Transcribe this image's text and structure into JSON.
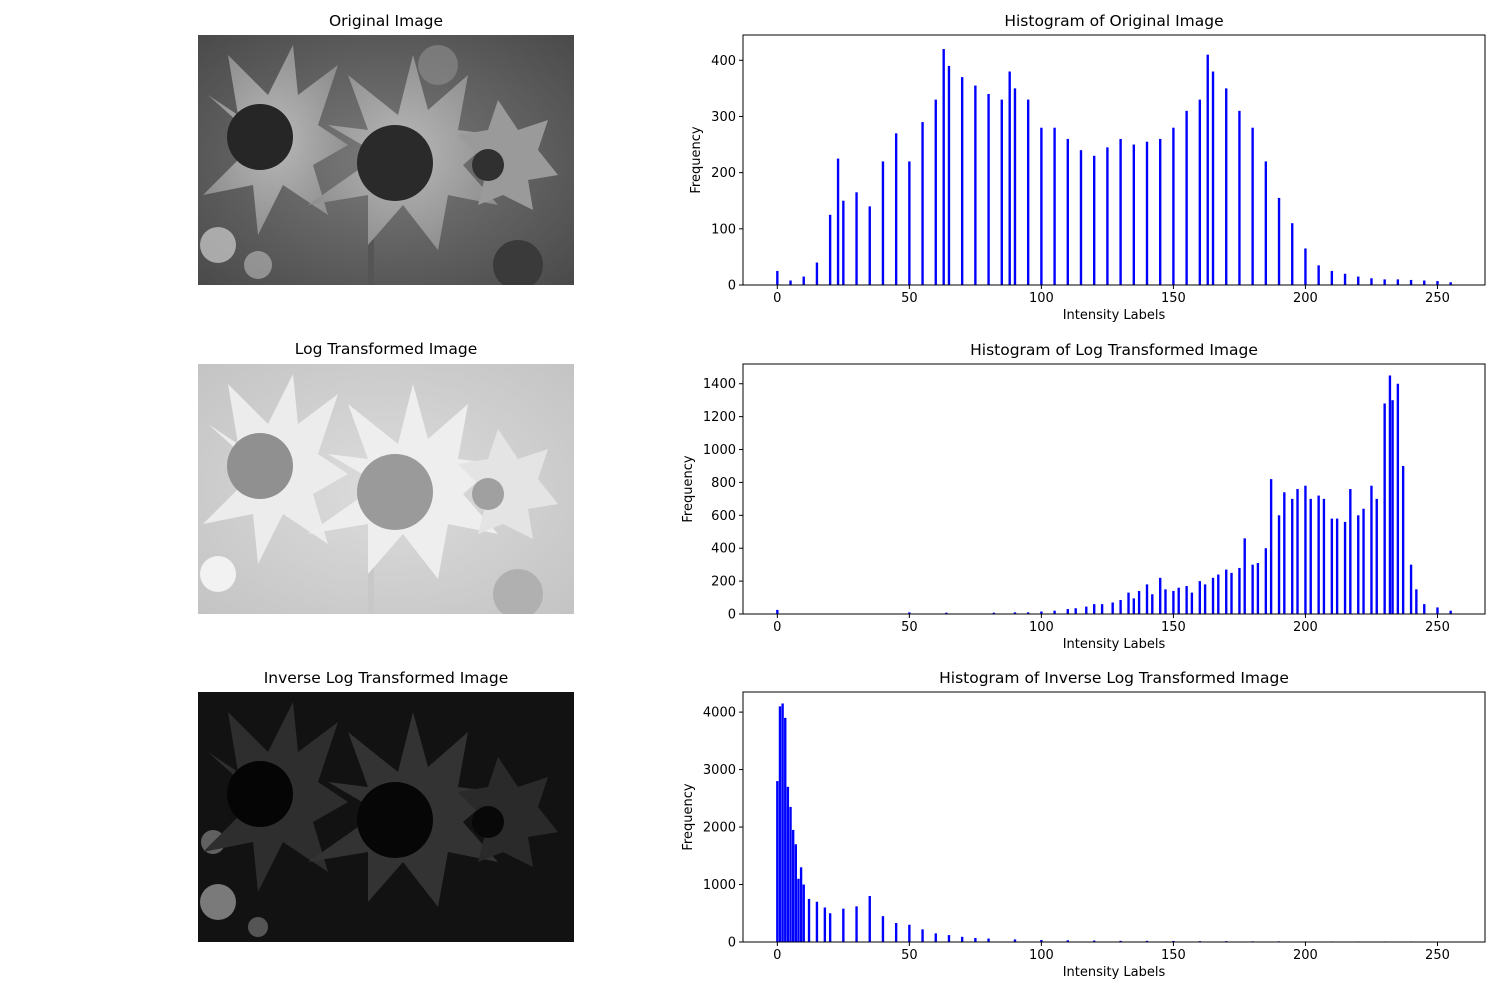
{
  "panels": [
    {
      "image_title": "Original Image",
      "histogram_title": "Histogram of Original Image",
      "tone": "normal"
    },
    {
      "image_title": "Log Transformed Image",
      "histogram_title": "Histogram of Log Transformed Image",
      "tone": "bright"
    },
    {
      "image_title": "Inverse Log Transformed Image",
      "histogram_title": "Histogram of Inverse Log Transformed Image",
      "tone": "dark"
    }
  ],
  "colors": {
    "bars": "#0000ff",
    "axis": "#000000",
    "background": "#ffffff"
  },
  "chart_data": [
    {
      "type": "bar",
      "title": "Histogram of Original Image",
      "xlabel": "Intensity Labels",
      "ylabel": "Frequency",
      "xlim": [
        -13,
        268
      ],
      "ylim": [
        0,
        445
      ],
      "xticks": [
        0,
        50,
        100,
        150,
        200,
        250
      ],
      "yticks": [
        0,
        100,
        200,
        300,
        400
      ],
      "grid": false,
      "bar_color": "#0000ff",
      "x": [
        0,
        5,
        10,
        15,
        20,
        23,
        25,
        30,
        35,
        40,
        45,
        50,
        55,
        60,
        63,
        65,
        70,
        75,
        80,
        85,
        88,
        90,
        95,
        100,
        105,
        110,
        115,
        120,
        125,
        130,
        135,
        140,
        145,
        150,
        155,
        160,
        163,
        165,
        170,
        175,
        180,
        185,
        190,
        195,
        200,
        205,
        210,
        215,
        220,
        225,
        230,
        235,
        240,
        245,
        250,
        255
      ],
      "y": [
        25,
        8,
        15,
        40,
        125,
        225,
        150,
        165,
        140,
        220,
        270,
        220,
        290,
        330,
        420,
        390,
        370,
        355,
        340,
        330,
        380,
        350,
        330,
        280,
        280,
        260,
        240,
        230,
        245,
        260,
        250,
        255,
        260,
        280,
        310,
        330,
        410,
        380,
        350,
        310,
        280,
        220,
        155,
        110,
        65,
        35,
        25,
        20,
        15,
        12,
        10,
        10,
        9,
        8,
        7,
        5
      ]
    },
    {
      "type": "bar",
      "title": "Histogram of Log Transformed Image",
      "xlabel": "Intensity Labels",
      "ylabel": "Frequency",
      "xlim": [
        -13,
        268
      ],
      "ylim": [
        0,
        1520
      ],
      "xticks": [
        0,
        50,
        100,
        150,
        200,
        250
      ],
      "yticks": [
        0,
        200,
        400,
        600,
        800,
        1000,
        1200,
        1400
      ],
      "grid": false,
      "bar_color": "#0000ff",
      "x": [
        0,
        50,
        64,
        82,
        90,
        95,
        100,
        105,
        110,
        113,
        117,
        120,
        123,
        127,
        130,
        133,
        135,
        137,
        140,
        142,
        145,
        147,
        150,
        152,
        155,
        157,
        160,
        162,
        165,
        167,
        170,
        172,
        175,
        177,
        180,
        182,
        185,
        187,
        190,
        192,
        195,
        197,
        200,
        202,
        205,
        207,
        210,
        212,
        215,
        217,
        220,
        222,
        225,
        227,
        230,
        232,
        233,
        235,
        237,
        240,
        242,
        245,
        250,
        255
      ],
      "y": [
        25,
        10,
        8,
        8,
        10,
        10,
        15,
        20,
        30,
        35,
        45,
        60,
        60,
        70,
        85,
        130,
        95,
        140,
        180,
        120,
        220,
        150,
        140,
        160,
        170,
        130,
        200,
        180,
        220,
        240,
        270,
        250,
        280,
        460,
        300,
        310,
        400,
        820,
        600,
        740,
        700,
        760,
        780,
        700,
        720,
        700,
        580,
        580,
        560,
        760,
        600,
        640,
        780,
        700,
        1280,
        1450,
        1300,
        1400,
        900,
        300,
        150,
        60,
        40,
        20
      ]
    },
    {
      "type": "bar",
      "title": "Histogram of Inverse Log Transformed Image",
      "xlabel": "Intensity Labels",
      "ylabel": "Frequency",
      "xlim": [
        -13,
        268
      ],
      "ylim": [
        0,
        4350
      ],
      "xticks": [
        0,
        50,
        100,
        150,
        200,
        250
      ],
      "yticks": [
        0,
        1000,
        2000,
        3000,
        4000
      ],
      "grid": false,
      "bar_color": "#0000ff",
      "x": [
        0,
        1,
        2,
        3,
        4,
        5,
        6,
        7,
        8,
        9,
        10,
        12,
        15,
        18,
        20,
        25,
        30,
        35,
        40,
        45,
        50,
        55,
        60,
        65,
        70,
        75,
        80,
        90,
        100,
        110,
        120,
        130,
        140,
        150,
        160,
        170,
        180,
        190,
        200,
        210,
        220,
        230,
        240,
        250
      ],
      "y": [
        2800,
        4100,
        4150,
        3900,
        2700,
        2350,
        1950,
        1700,
        1100,
        1300,
        1000,
        750,
        700,
        600,
        500,
        580,
        620,
        800,
        450,
        330,
        300,
        220,
        150,
        120,
        90,
        70,
        60,
        45,
        35,
        30,
        25,
        20,
        20,
        18,
        15,
        15,
        12,
        12,
        10,
        10,
        10,
        10,
        10,
        8
      ]
    }
  ]
}
